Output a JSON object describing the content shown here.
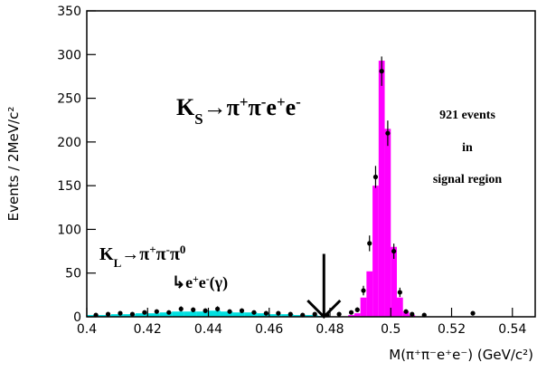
{
  "chart_data": {
    "type": "histogram",
    "ylabel": "Events / 2MeV/c²",
    "xlabel": "M(π⁺π⁻e⁺e⁻)  (GeV/c²)",
    "xlim": [
      0.4,
      0.5475
    ],
    "ylim": [
      0,
      350
    ],
    "xticks": [
      0.4,
      0.42,
      0.44,
      0.46,
      0.48,
      0.5,
      0.52,
      0.54
    ],
    "yticks": [
      0,
      50,
      100,
      150,
      200,
      250,
      300,
      350
    ],
    "histograms": [
      {
        "name": "KL background",
        "color": "#00e0e0",
        "bins": [
          0.4,
          0.404,
          0.408,
          0.412,
          0.416,
          0.42,
          0.424,
          0.428,
          0.432,
          0.436,
          0.44,
          0.444,
          0.448,
          0.452,
          0.456,
          0.46,
          0.464,
          0.468,
          0.472,
          0.476,
          0.48
        ],
        "counts": [
          2,
          2,
          3,
          3,
          4,
          4,
          5,
          6,
          6,
          6,
          7,
          6,
          5,
          5,
          4,
          3,
          3,
          2,
          2,
          1
        ]
      },
      {
        "name": "KS signal",
        "color": "#ff00ff",
        "bins": [
          0.486,
          0.488,
          0.49,
          0.492,
          0.494,
          0.496,
          0.498,
          0.5,
          0.502,
          0.504,
          0.506,
          0.508
        ],
        "counts": [
          2,
          4,
          22,
          52,
          150,
          293,
          215,
          80,
          22,
          6,
          2
        ]
      }
    ],
    "points": {
      "x": [
        0.403,
        0.407,
        0.411,
        0.415,
        0.419,
        0.423,
        0.427,
        0.431,
        0.435,
        0.439,
        0.443,
        0.447,
        0.451,
        0.455,
        0.459,
        0.463,
        0.467,
        0.471,
        0.475,
        0.479,
        0.483,
        0.487,
        0.489,
        0.491,
        0.493,
        0.495,
        0.497,
        0.499,
        0.501,
        0.503,
        0.505,
        0.507,
        0.511,
        0.527
      ],
      "y": [
        2,
        3,
        4,
        3,
        5,
        6,
        5,
        9,
        8,
        7,
        9,
        6,
        7,
        5,
        4,
        4,
        3,
        2,
        3,
        2,
        3,
        5,
        8,
        30,
        84,
        160,
        281,
        210,
        75,
        28,
        6,
        3,
        2,
        4
      ],
      "err": [
        1.4,
        1.7,
        2,
        1.7,
        2.2,
        2.4,
        2.2,
        3,
        2.8,
        2.6,
        3,
        2.4,
        2.6,
        2.2,
        2,
        2,
        1.7,
        1.4,
        1.7,
        1.4,
        1.7,
        2.2,
        2.8,
        5.5,
        9,
        12.6,
        16.8,
        14.5,
        8.7,
        5.3,
        2.4,
        1.7,
        1.4,
        2
      ]
    },
    "arrow": {
      "x": 0.478,
      "y": 72
    },
    "annotations": [
      {
        "parts": [
          {
            "text": "K",
            "style": "normal"
          },
          {
            "text": "S",
            "style": "sub"
          },
          {
            "text": "→π",
            "style": "normal"
          },
          {
            "text": "+",
            "style": "sup"
          },
          {
            "text": "π",
            "style": "normal"
          },
          {
            "text": "-",
            "style": "sup"
          },
          {
            "text": "e",
            "style": "normal"
          },
          {
            "text": "+",
            "style": "sup"
          },
          {
            "text": "e",
            "style": "normal"
          },
          {
            "text": "-",
            "style": "sup"
          }
        ]
      },
      {
        "parts": [
          {
            "text": "K",
            "style": "normal"
          },
          {
            "text": "L",
            "style": "sub"
          },
          {
            "text": "→π",
            "style": "normal"
          },
          {
            "text": "+",
            "style": "sup"
          },
          {
            "text": "π",
            "style": "normal"
          },
          {
            "text": "-",
            "style": "sup"
          },
          {
            "text": "π",
            "style": "normal"
          },
          {
            "text": "0",
            "style": "sup"
          }
        ]
      },
      {
        "parts": [
          {
            "text": "↳e",
            "style": "normal"
          },
          {
            "text": "+",
            "style": "sup"
          },
          {
            "text": "e",
            "style": "normal"
          },
          {
            "text": "-",
            "style": "sup"
          },
          {
            "text": "(γ)",
            "style": "normal"
          }
        ]
      }
    ],
    "signal_text": [
      "921 events",
      "in",
      "signal region"
    ]
  }
}
